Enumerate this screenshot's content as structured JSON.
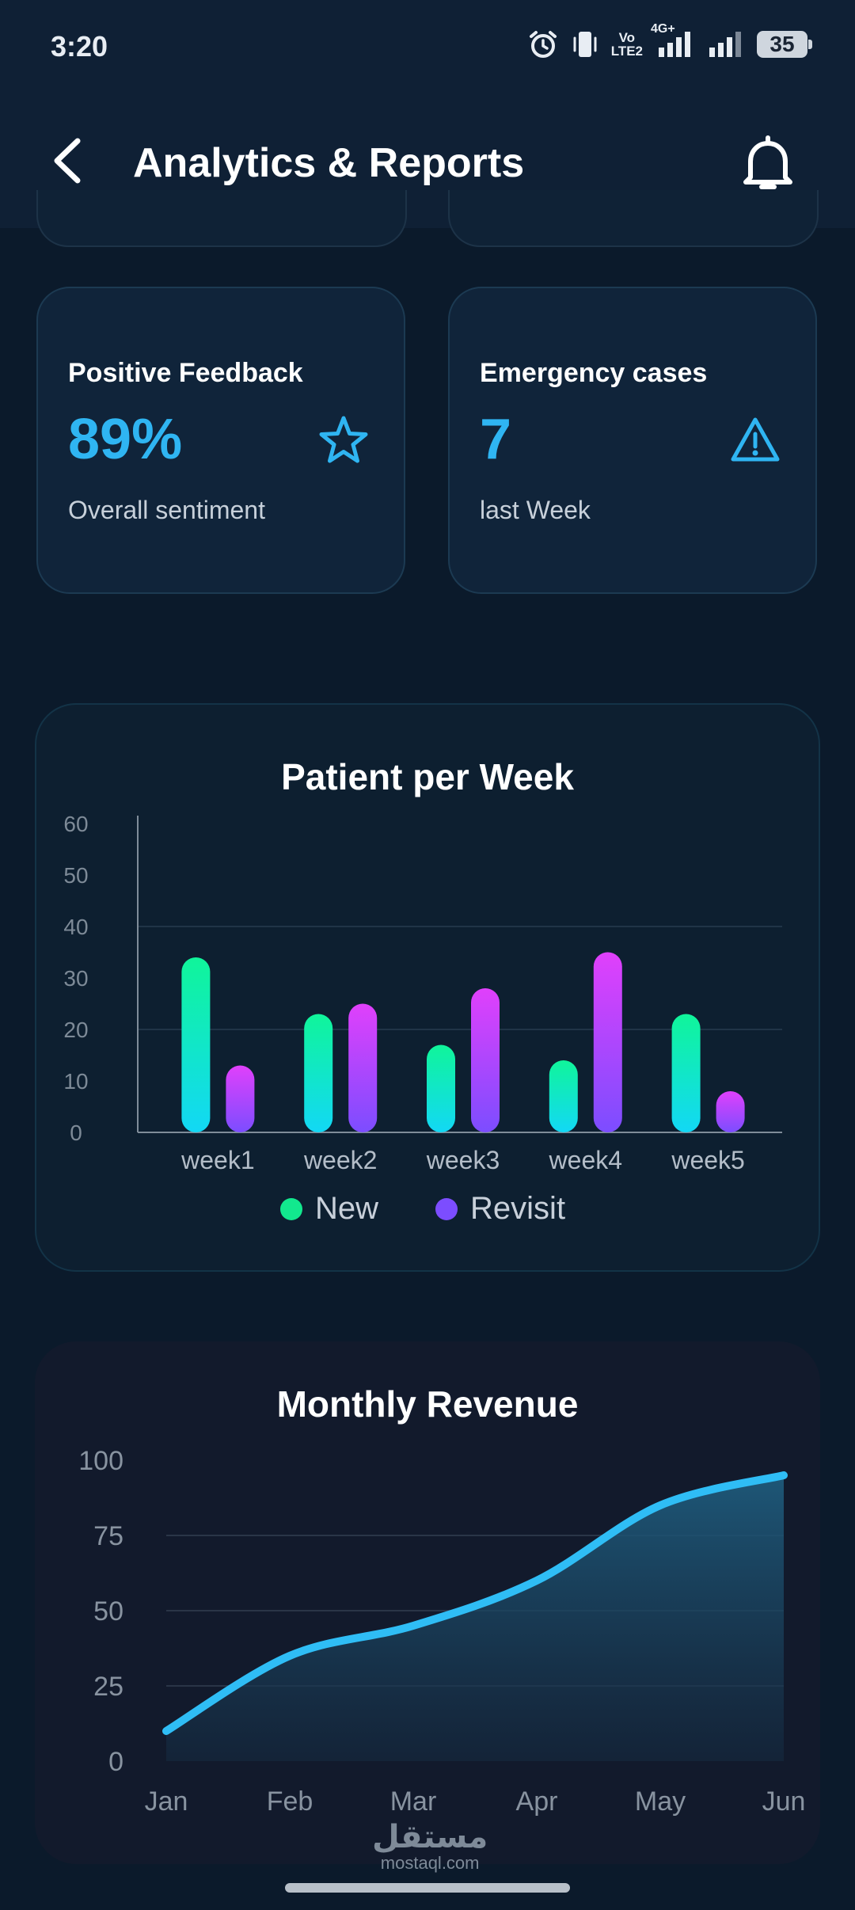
{
  "status_bar": {
    "time": "3:20",
    "lte_line1": "Vo",
    "lte_line2": "LTE2",
    "network": "4G+",
    "battery": "35"
  },
  "header": {
    "title": "Analytics & Reports"
  },
  "stats": [
    {
      "label": "Positive Feedback",
      "value": "89%",
      "sub": "Overall sentiment",
      "icon": "star-icon"
    },
    {
      "label": "Emergency cases",
      "value": "7",
      "sub": "last Week",
      "icon": "warning-icon"
    }
  ],
  "colors": {
    "accent": "#2fb5f2",
    "new_top": "#10f59a",
    "new_bottom": "#12d8f5",
    "revisit_top": "#e040fb",
    "revisit_bottom": "#7c4dff",
    "revenue_line": "#2fbdf5"
  },
  "chart_data": [
    {
      "type": "bar",
      "title": "Patient per Week",
      "categories": [
        "week1",
        "week2",
        "week3",
        "week4",
        "week5"
      ],
      "series": [
        {
          "name": "New",
          "values": [
            34,
            23,
            17,
            14,
            23
          ]
        },
        {
          "name": "Revisit",
          "values": [
            13,
            25,
            28,
            35,
            8
          ]
        }
      ],
      "yticks": [
        "0",
        "10",
        "20",
        "30",
        "40",
        "50",
        "60"
      ],
      "ylim": [
        0,
        60
      ],
      "grid": true,
      "legend": "bottom-center"
    },
    {
      "type": "area",
      "title": "Monthly Revenue",
      "x": [
        "Jan",
        "Feb",
        "Mar",
        "Apr",
        "May",
        "Jun"
      ],
      "values": [
        10,
        35,
        45,
        60,
        85,
        95
      ],
      "yticks": [
        "0",
        "25",
        "50",
        "75",
        "100"
      ],
      "ylim": [
        0,
        100
      ],
      "grid": true
    }
  ],
  "watermark": {
    "arabic": "مستقل",
    "site": "mostaql.com"
  }
}
